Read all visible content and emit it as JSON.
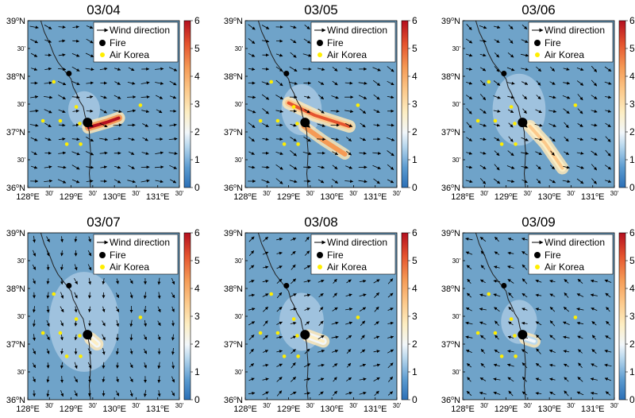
{
  "colorbar_ticks": [
    "0",
    "1",
    "2",
    "3",
    "4",
    "5",
    "6"
  ],
  "colors": {
    "background": "#6fa3c9",
    "coast": "#222222",
    "fire": "#000000",
    "air_korea": "#ffee00",
    "arrow": "#000000"
  },
  "axes": {
    "y_labels": [
      "39",
      "30'",
      "38",
      "30'",
      "37",
      "30'",
      "36"
    ],
    "y_suffix": "N",
    "x_labels": [
      "128",
      "30'",
      "129",
      "30'",
      "130",
      "30'",
      "131",
      "30'"
    ],
    "x_suffix": "E",
    "degree_mark": "o"
  },
  "legend": {
    "wind": "Wind direction",
    "fire": "Fire",
    "air_korea": "Air Korea"
  },
  "panels": [
    {
      "title": "03/04",
      "wind_dir_deg": 100,
      "wind_mag": 1.0,
      "plume": [
        [
          37.08,
          129.4
        ],
        [
          37.18,
          129.85
        ],
        [
          37.25,
          130.1
        ]
      ],
      "plume_value": 5.5,
      "diffuse": 0.15
    },
    {
      "title": "03/05",
      "wind_dir_deg": 110,
      "wind_mag": 1.0,
      "plume": [
        [
          37.52,
          129.0
        ],
        [
          37.3,
          129.6
        ],
        [
          37.1,
          130.4
        ]
      ],
      "plume_value": 4.5,
      "diffuse": 0.25
    },
    {
      "title": "03/06",
      "wind_dir_deg": 120,
      "wind_mag": 0.8,
      "plume": [
        [
          37.1,
          129.55
        ],
        [
          36.8,
          129.9
        ],
        [
          36.35,
          130.3
        ]
      ],
      "plume_value": 3.0,
      "diffuse": 0.4
    },
    {
      "title": "03/07",
      "wind_dir_deg": 170,
      "wind_mag": 0.5,
      "plume": [
        [
          37.1,
          129.45
        ],
        [
          37.0,
          129.6
        ]
      ],
      "plume_value": 2.5,
      "diffuse": 0.6
    },
    {
      "title": "03/08",
      "wind_dir_deg": 60,
      "wind_mag": 0.6,
      "plume": [
        [
          37.15,
          129.45
        ],
        [
          37.05,
          129.8
        ]
      ],
      "plume_value": 2.2,
      "diffuse": 0.3
    },
    {
      "title": "03/09",
      "wind_dir_deg": 300,
      "wind_mag": 0.6,
      "plume": [
        [
          37.1,
          129.45
        ],
        [
          37.05,
          129.65
        ]
      ],
      "plume_value": 1.8,
      "diffuse": 0.2
    }
  ],
  "fires": [
    [
      38.05,
      128.95
    ],
    [
      37.17,
      129.38
    ]
  ],
  "air_korea_stations": [
    [
      37.9,
      128.6
    ],
    [
      37.45,
      129.12
    ],
    [
      37.2,
      128.35
    ],
    [
      37.2,
      128.75
    ],
    [
      37.15,
      129.2
    ],
    [
      36.78,
      128.9
    ],
    [
      36.78,
      129.22
    ],
    [
      37.48,
      130.6
    ]
  ]
}
